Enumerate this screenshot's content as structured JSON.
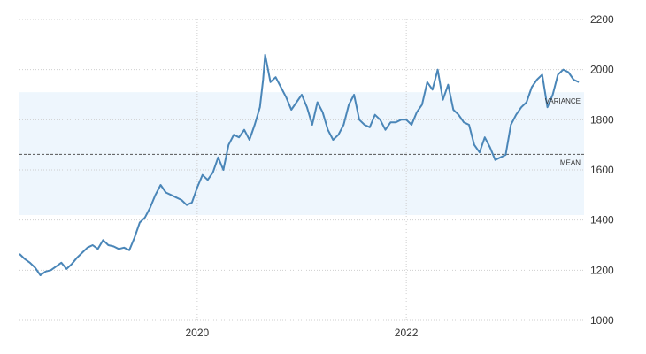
{
  "chart_data": {
    "type": "line",
    "title": "",
    "xlabel": "",
    "ylabel": "",
    "xlim": [
      2018.3,
      2023.7
    ],
    "ylim": [
      1000,
      2200
    ],
    "x_ticks": [
      {
        "value": 2020,
        "label": "2020"
      },
      {
        "value": 2022,
        "label": "2022"
      }
    ],
    "y_ticks": [
      {
        "value": 1000,
        "label": "1000"
      },
      {
        "value": 1200,
        "label": "1200"
      },
      {
        "value": 1400,
        "label": "1400"
      },
      {
        "value": 1600,
        "label": "1600"
      },
      {
        "value": 1800,
        "label": "1800"
      },
      {
        "value": 2000,
        "label": "2000"
      },
      {
        "value": 2200,
        "label": "2200"
      }
    ],
    "grid": true,
    "y_axis_position": "right",
    "mean": {
      "label": "MEAN",
      "value": 1662
    },
    "variance_band": {
      "label": "VARIANCE",
      "low": 1420,
      "high": 1910
    },
    "colors": {
      "line": "#4a86b8",
      "band": "#eef6fd",
      "mean_line": "#555555"
    },
    "series": [
      {
        "x": [
          2018.3,
          2018.35,
          2018.4,
          2018.45,
          2018.5,
          2018.55,
          2018.6,
          2018.65,
          2018.7,
          2018.75,
          2018.8,
          2018.85,
          2018.9,
          2018.95,
          2019.0,
          2019.05,
          2019.1,
          2019.15,
          2019.2,
          2019.25,
          2019.3,
          2019.35,
          2019.4,
          2019.45,
          2019.5,
          2019.55,
          2019.6,
          2019.65,
          2019.7,
          2019.75,
          2019.8,
          2019.85,
          2019.9,
          2019.95,
          2020.0,
          2020.05,
          2020.1,
          2020.15,
          2020.2,
          2020.25,
          2020.3,
          2020.35,
          2020.4,
          2020.45,
          2020.5,
          2020.55,
          2020.6,
          2020.63,
          2020.65,
          2020.7,
          2020.75,
          2020.8,
          2020.85,
          2020.9,
          2020.95,
          2021.0,
          2021.05,
          2021.1,
          2021.15,
          2021.2,
          2021.25,
          2021.3,
          2021.35,
          2021.4,
          2021.45,
          2021.5,
          2021.55,
          2021.6,
          2021.65,
          2021.7,
          2021.75,
          2021.8,
          2021.85,
          2021.9,
          2021.95,
          2022.0,
          2022.05,
          2022.1,
          2022.15,
          2022.2,
          2022.25,
          2022.3,
          2022.35,
          2022.4,
          2022.45,
          2022.5,
          2022.55,
          2022.6,
          2022.65,
          2022.7,
          2022.75,
          2022.8,
          2022.85,
          2022.9,
          2022.95,
          2023.0,
          2023.05,
          2023.1,
          2023.15,
          2023.2,
          2023.25,
          2023.3,
          2023.35,
          2023.4,
          2023.45,
          2023.5,
          2023.55,
          2023.6,
          2023.65
        ],
        "y": [
          1265,
          1245,
          1230,
          1210,
          1180,
          1195,
          1200,
          1215,
          1230,
          1205,
          1225,
          1250,
          1270,
          1290,
          1300,
          1285,
          1320,
          1300,
          1295,
          1285,
          1290,
          1280,
          1330,
          1390,
          1410,
          1450,
          1500,
          1540,
          1510,
          1500,
          1490,
          1480,
          1460,
          1470,
          1530,
          1580,
          1560,
          1590,
          1650,
          1600,
          1700,
          1740,
          1730,
          1760,
          1720,
          1780,
          1850,
          1960,
          2060,
          1950,
          1970,
          1930,
          1890,
          1840,
          1870,
          1900,
          1850,
          1780,
          1870,
          1830,
          1760,
          1720,
          1740,
          1780,
          1860,
          1900,
          1800,
          1780,
          1770,
          1820,
          1800,
          1760,
          1790,
          1790,
          1800,
          1800,
          1780,
          1830,
          1860,
          1950,
          1920,
          2000,
          1880,
          1940,
          1840,
          1820,
          1790,
          1780,
          1700,
          1670,
          1730,
          1690,
          1640,
          1650,
          1660,
          1780,
          1820,
          1850,
          1870,
          1930,
          1960,
          1980,
          1850,
          1900,
          1980,
          2000,
          1990,
          1960,
          1950
        ]
      }
    ]
  }
}
